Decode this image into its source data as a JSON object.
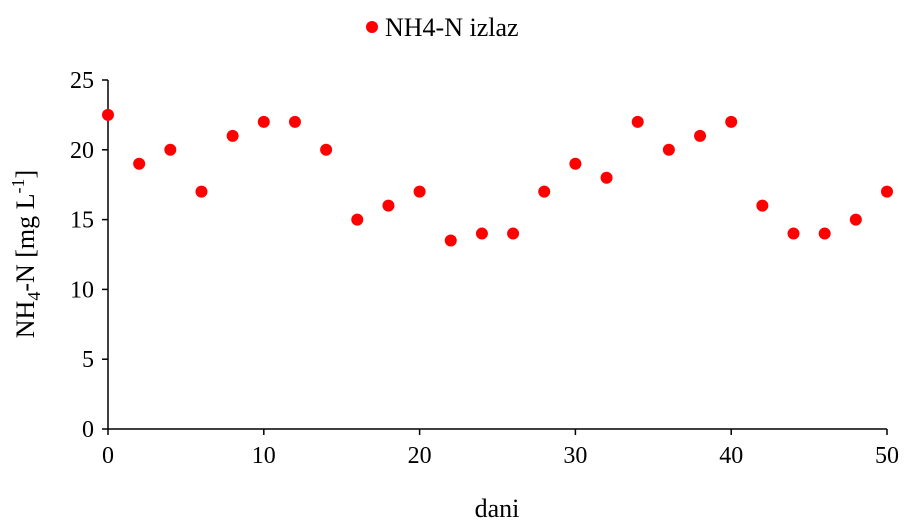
{
  "chart_data": {
    "type": "scatter",
    "title": "",
    "xlabel": "dani",
    "ylabel": {
      "base": "NH",
      "sub": "4",
      "mid": "-N [mg L",
      "sup": "-1",
      "end": "]"
    },
    "xlim": [
      0,
      50
    ],
    "ylim": [
      0,
      25
    ],
    "x_ticks": [
      0,
      10,
      20,
      30,
      40,
      50
    ],
    "y_ticks": [
      0,
      5,
      10,
      15,
      20,
      25
    ],
    "grid": false,
    "legend_position": "top-center",
    "series": [
      {
        "name": "NH4-N izlaz",
        "color": "#ff0000",
        "x": [
          0,
          2,
          4,
          6,
          8,
          10,
          12,
          14,
          16,
          18,
          20,
          22,
          24,
          26,
          28,
          30,
          32,
          34,
          36,
          38,
          40,
          42,
          44,
          46,
          48,
          50
        ],
        "y": [
          22.5,
          19,
          20,
          17,
          21,
          22,
          22,
          20,
          15,
          16,
          17,
          13.5,
          14,
          14,
          17,
          19,
          18,
          22,
          20,
          21,
          22,
          16,
          14,
          14,
          15,
          17
        ]
      }
    ]
  }
}
